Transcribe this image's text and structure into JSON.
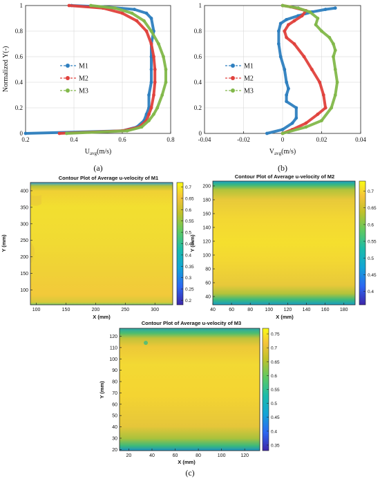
{
  "top_panels": [
    {
      "id": "a",
      "sublabel": "(a)",
      "xlabel_main": "U",
      "xlabel_sub": "avg",
      "xlabel_unit": "(m/s)",
      "ylabel": "Normalized Y(-)",
      "xlim": [
        0.2,
        0.8
      ],
      "ylim": [
        0,
        1
      ],
      "xticks": [
        "0.2",
        "0.4",
        "0.6",
        "0.8"
      ],
      "xtick_values": [
        0.2,
        0.4,
        0.6,
        0.8
      ],
      "yticks": [
        "0",
        "0.2",
        "0.4",
        "0.6",
        "0.8",
        "1"
      ],
      "ytick_values": [
        0,
        0.2,
        0.4,
        0.6,
        0.8,
        1
      ],
      "legend": [
        "M1",
        "M2",
        "M3"
      ]
    },
    {
      "id": "b",
      "sublabel": "(b)",
      "xlabel_main": "V",
      "xlabel_sub": "avg",
      "xlabel_unit": "(m/s)",
      "ylabel": "",
      "xlim": [
        -0.04,
        0.04
      ],
      "ylim": [
        0,
        1
      ],
      "xticks": [
        "-0.04",
        "-0.02",
        "0",
        "0.02",
        "0.04"
      ],
      "xtick_values": [
        -0.04,
        -0.02,
        0,
        0.02,
        0.04
      ],
      "yticks": [
        "0",
        "0.2",
        "0.4",
        "0.6",
        "0.8",
        "1"
      ],
      "ytick_values": [
        0,
        0.2,
        0.4,
        0.6,
        0.8,
        1
      ],
      "legend": [
        "M1",
        "M2",
        "M3"
      ]
    }
  ],
  "contour_panels": [
    {
      "id": "M1",
      "title": "Contour Plot of Average u-velocity of M1",
      "xlabel": "X (mm)",
      "ylabel": "Y (mm)",
      "xticks": [
        "100",
        "150",
        "200",
        "250",
        "300"
      ],
      "xtick_values": [
        100,
        150,
        200,
        250,
        300
      ],
      "yticks": [
        "100",
        "150",
        "200",
        "250",
        "300",
        "350",
        "400"
      ],
      "ytick_values": [
        100,
        150,
        200,
        250,
        300,
        350,
        400
      ],
      "xlim": [
        90,
        330
      ],
      "ylim": [
        55,
        425
      ],
      "cbar_ticks": [
        "0.7",
        "0.65",
        "0.6",
        "0.55",
        "0.5",
        "0.45",
        "0.4",
        "0.35",
        "0.3",
        "0.25",
        "0.2"
      ],
      "cbar_values": [
        0.7,
        0.65,
        0.6,
        0.55,
        0.5,
        0.45,
        0.4,
        0.35,
        0.3,
        0.25,
        0.2
      ],
      "clim": [
        0.18,
        0.72
      ]
    },
    {
      "id": "M2",
      "title": "Contour Plot of Average u-velocity of M2",
      "xlabel": "X (mm)",
      "ylabel": "Y (mm)",
      "xticks": [
        "40",
        "60",
        "80",
        "100",
        "120",
        "140",
        "160",
        "180"
      ],
      "xtick_values": [
        40,
        60,
        80,
        100,
        120,
        140,
        160,
        180
      ],
      "yticks": [
        "40",
        "60",
        "80",
        "100",
        "120",
        "140",
        "160",
        "180",
        "200"
      ],
      "ytick_values": [
        40,
        60,
        80,
        100,
        120,
        140,
        160,
        180,
        200
      ],
      "xlim": [
        40,
        192
      ],
      "ylim": [
        28,
        207
      ],
      "cbar_ticks": [
        "0.7",
        "0.65",
        "0.6",
        "0.55",
        "0.5",
        "0.45",
        "0.4"
      ],
      "cbar_values": [
        0.7,
        0.65,
        0.6,
        0.55,
        0.5,
        0.45,
        0.4
      ],
      "clim": [
        0.36,
        0.73
      ]
    },
    {
      "id": "M3",
      "title": "Contour Plot of Average u-velocity of M3",
      "xlabel": "X (mm)",
      "ylabel": "Y (mm)",
      "xticks": [
        "20",
        "40",
        "60",
        "80",
        "100",
        "120"
      ],
      "xtick_values": [
        20,
        40,
        60,
        80,
        100,
        120
      ],
      "yticks": [
        "20",
        "30",
        "40",
        "50",
        "60",
        "70",
        "80",
        "90",
        "100",
        "110",
        "120"
      ],
      "ytick_values": [
        20,
        30,
        40,
        50,
        60,
        70,
        80,
        90,
        100,
        110,
        120
      ],
      "xlim": [
        12,
        133
      ],
      "ylim": [
        19,
        127
      ],
      "cbar_ticks": [
        "0.75",
        "0.7",
        "0.65",
        "0.6",
        "0.55",
        "0.5",
        "0.45",
        "0.4",
        "0.35"
      ],
      "cbar_values": [
        0.75,
        0.7,
        0.65,
        0.6,
        0.55,
        0.5,
        0.45,
        0.4,
        0.35
      ],
      "clim": [
        0.33,
        0.77
      ]
    }
  ],
  "contour_sublabel": "(c)",
  "colors": {
    "M1": "#2e7fbf",
    "M2": "#e0413c",
    "M3": "#82b84a"
  },
  "chart_data": [
    {
      "type": "line",
      "xlim": [
        0.2,
        0.8
      ],
      "ylim": [
        0,
        1
      ],
      "series": [
        {
          "name": "M1",
          "x": [
            0.2,
            0.6,
            0.66,
            0.69,
            0.7,
            0.71,
            0.71,
            0.72,
            0.72,
            0.72,
            0.72,
            0.73,
            0.72,
            0.7,
            0.65,
            0.52,
            0.39
          ],
          "y": [
            0,
            0.02,
            0.05,
            0.1,
            0.15,
            0.2,
            0.3,
            0.4,
            0.5,
            0.6,
            0.7,
            0.8,
            0.9,
            0.94,
            0.97,
            0.99,
            1.0
          ]
        },
        {
          "name": "M2",
          "x": [
            0.34,
            0.6,
            0.67,
            0.7,
            0.71,
            0.72,
            0.73,
            0.735,
            0.735,
            0.73,
            0.72,
            0.7,
            0.66,
            0.6,
            0.52,
            0.38
          ],
          "y": [
            0,
            0.02,
            0.05,
            0.1,
            0.15,
            0.2,
            0.3,
            0.4,
            0.5,
            0.6,
            0.7,
            0.8,
            0.88,
            0.94,
            0.98,
            1.0
          ]
        },
        {
          "name": "M3",
          "x": [
            0.37,
            0.62,
            0.68,
            0.71,
            0.73,
            0.745,
            0.765,
            0.78,
            0.78,
            0.77,
            0.75,
            0.72,
            0.69,
            0.64,
            0.57,
            0.47
          ],
          "y": [
            0,
            0.02,
            0.05,
            0.1,
            0.15,
            0.2,
            0.3,
            0.4,
            0.5,
            0.6,
            0.7,
            0.8,
            0.88,
            0.94,
            0.98,
            1.0
          ]
        }
      ]
    },
    {
      "type": "line",
      "xlim": [
        -0.04,
        0.04
      ],
      "ylim": [
        0,
        1
      ],
      "series": [
        {
          "name": "M1",
          "x": [
            -0.008,
            0.0,
            0.005,
            0.007,
            0.007,
            0.002,
            0.002,
            0.003,
            0.002,
            0.001,
            -0.001,
            -0.002,
            -0.002,
            -0.001,
            0.002,
            0.008,
            0.015,
            0.022,
            0.027
          ],
          "y": [
            0,
            0.03,
            0.08,
            0.12,
            0.2,
            0.25,
            0.3,
            0.35,
            0.4,
            0.5,
            0.6,
            0.7,
            0.8,
            0.86,
            0.89,
            0.92,
            0.95,
            0.97,
            0.98
          ]
        },
        {
          "name": "M2",
          "x": [
            0.0,
            0.005,
            0.012,
            0.018,
            0.022,
            0.021,
            0.019,
            0.015,
            0.011,
            0.006,
            0.002,
            0.001,
            0.003,
            0.006,
            0.01,
            0.012,
            0.004,
            0.0
          ],
          "y": [
            0,
            0.03,
            0.08,
            0.15,
            0.2,
            0.3,
            0.4,
            0.5,
            0.6,
            0.7,
            0.75,
            0.8,
            0.85,
            0.88,
            0.92,
            0.96,
            0.99,
            1.0
          ]
        },
        {
          "name": "M3",
          "x": [
            0.0,
            0.012,
            0.02,
            0.025,
            0.027,
            0.028,
            0.027,
            0.026,
            0.027,
            0.026,
            0.024,
            0.02,
            0.017,
            0.018,
            0.014,
            0.008,
            0.0
          ],
          "y": [
            0,
            0.05,
            0.1,
            0.2,
            0.3,
            0.4,
            0.5,
            0.6,
            0.65,
            0.7,
            0.75,
            0.8,
            0.85,
            0.9,
            0.95,
            0.98,
            1.0
          ]
        }
      ]
    }
  ]
}
